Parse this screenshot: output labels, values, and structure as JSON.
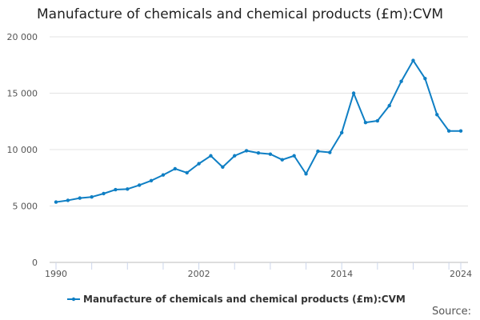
{
  "chart_data": {
    "type": "line",
    "title": "Manufacture of chemicals and chemical products (£m):CVM",
    "xlabel": "",
    "ylabel": "",
    "x": [
      1990,
      1991,
      1992,
      1993,
      1994,
      1995,
      1996,
      1997,
      1998,
      1999,
      2000,
      2001,
      2002,
      2003,
      2004,
      2005,
      2006,
      2007,
      2008,
      2009,
      2010,
      2011,
      2012,
      2013,
      2014,
      2015,
      2016,
      2017,
      2018,
      2019,
      2020,
      2021,
      2022,
      2023,
      2024
    ],
    "series": [
      {
        "name": "Manufacture of chemicals and chemical products (£m):CVM",
        "color": "#0f7fc4",
        "values": [
          5350,
          5500,
          5700,
          5800,
          6100,
          6450,
          6500,
          6850,
          7250,
          7750,
          8300,
          7950,
          8750,
          9450,
          8450,
          9450,
          9900,
          9700,
          9600,
          9100,
          9450,
          7850,
          9850,
          9750,
          11500,
          15000,
          12400,
          12550,
          13900,
          16050,
          17900,
          16300,
          13100,
          11650,
          11650
        ]
      }
    ],
    "ylim": [
      0,
      20000
    ],
    "yticks": [
      0,
      5000,
      10000,
      15000,
      20000
    ],
    "ytick_labels": [
      "0",
      "5 000",
      "10 000",
      "15 000",
      "20 000"
    ],
    "xlim": [
      1990,
      2024
    ],
    "xtick_labels": [
      "1990",
      "2002",
      "2014",
      "2024"
    ],
    "grid": "horizontal",
    "legend_position": "bottom"
  },
  "footer": {
    "source": "Source:"
  }
}
